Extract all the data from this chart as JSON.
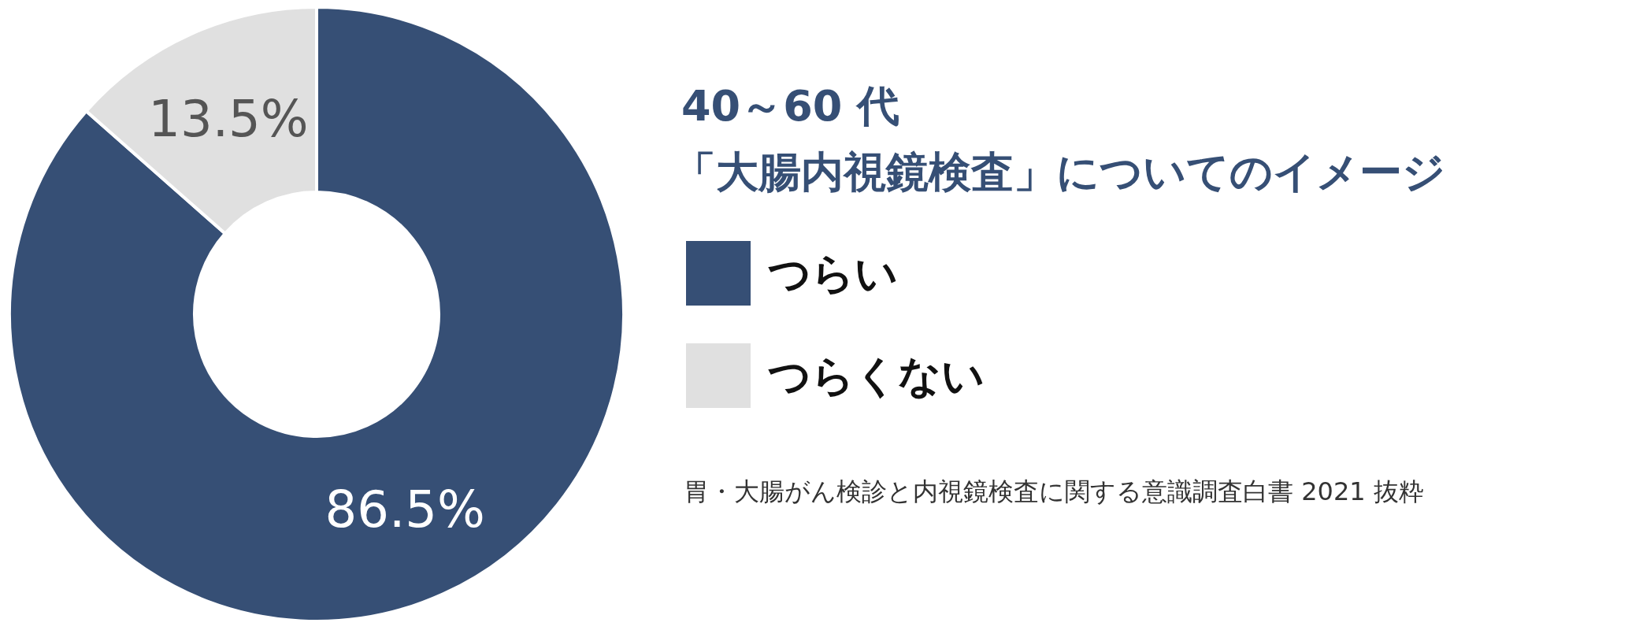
{
  "chart_data": {
    "type": "donut",
    "title": "40～60 代",
    "subtitle": "「大腸内視鏡検査」についてのイメージ",
    "categories": [
      "つらい",
      "つらくない"
    ],
    "values": [
      86.5,
      13.5
    ],
    "colors": [
      "#364f75",
      "#e0e0e0"
    ],
    "value_labels": [
      "86.5%",
      "13.5%"
    ],
    "legend": "right",
    "annotations": [
      "胃・大腸がん検診と内視鏡検査に関する意識調査白書 2021 抜粋"
    ]
  }
}
